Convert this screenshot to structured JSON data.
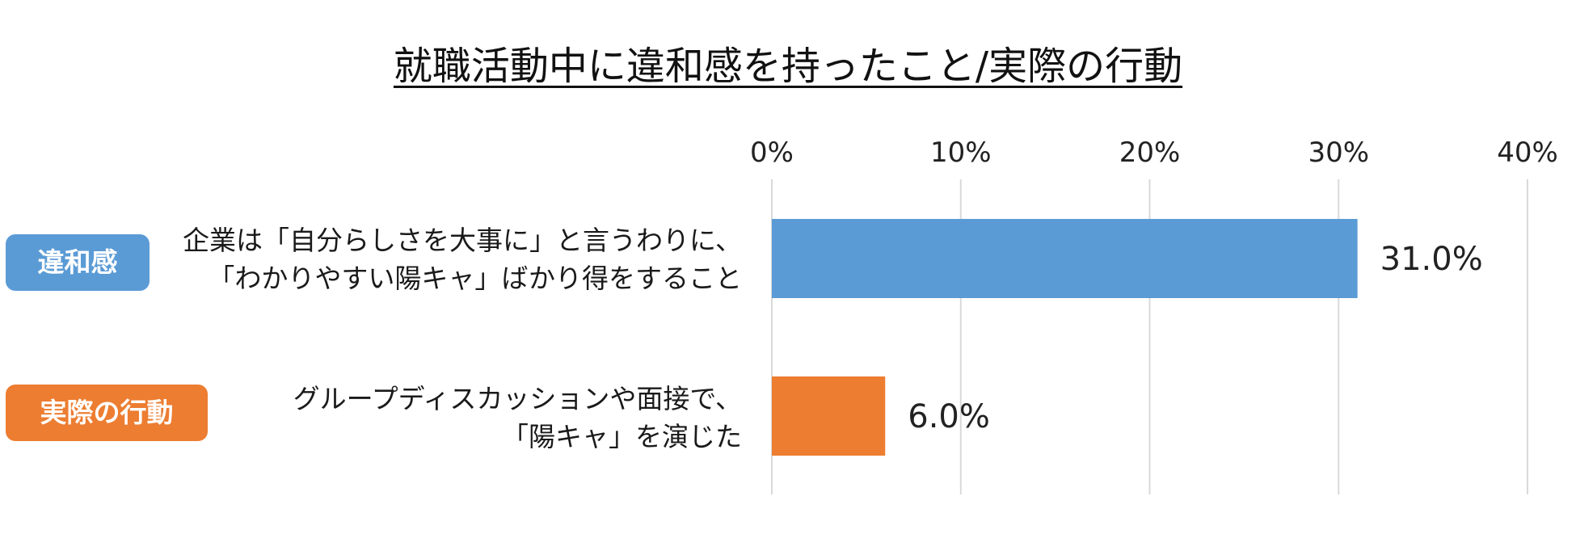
{
  "chart_data": {
    "type": "bar",
    "orientation": "horizontal",
    "title": "就職活動中に違和感を持ったこと/実際の行動",
    "categories": [
      {
        "tag": "違和感",
        "lines": [
          "企業は「自分らしさを大事に」と言うわりに、",
          "「わかりやすい陽キャ」ばかり得をすること"
        ]
      },
      {
        "tag": "実際の行動",
        "lines": [
          "グループディスカッションや面接で、",
          "「陽キャ」を演じた"
        ]
      }
    ],
    "values": [
      31.0,
      6.0
    ],
    "value_labels": [
      "31.0%",
      "6.0%"
    ],
    "xlim": [
      0,
      40
    ],
    "x_ticks": [
      0,
      10,
      20,
      30,
      40
    ],
    "x_tick_labels": [
      "0%",
      "10%",
      "20%",
      "30%",
      "40%"
    ],
    "x_axis_position": "top",
    "grid": true,
    "colors": [
      "#5b9bd5",
      "#ed7d31"
    ],
    "gridline_color": "#d9d9d9"
  }
}
